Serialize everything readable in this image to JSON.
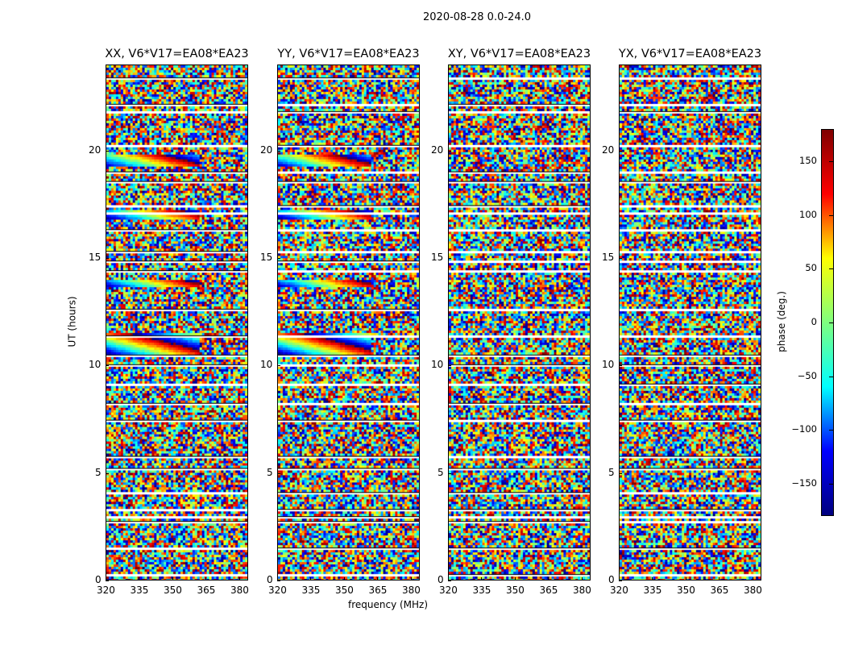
{
  "chart_data": {
    "type": "heatmap",
    "suptitle": "2020-08-28 0.0-24.0",
    "xlabel": "frequency (MHz)",
    "ylabel": "UT (hours)",
    "xlim": [
      320,
      384
    ],
    "ylim": [
      0,
      24
    ],
    "xticks": [
      320,
      335,
      350,
      365,
      380
    ],
    "yticks": [
      0,
      5,
      10,
      15,
      20
    ],
    "panels": [
      {
        "title": "XX, V6*V17=EA08*EA23",
        "coherent": true
      },
      {
        "title": "YY, V6*V17=EA08*EA23",
        "coherent": true
      },
      {
        "title": "XY, V6*V17=EA08*EA23",
        "coherent": false
      },
      {
        "title": "YX, V6*V17=EA08*EA23",
        "coherent": false
      }
    ],
    "flagged_ut_hours": [
      0.3,
      1.5,
      2.7,
      3.0,
      3.3,
      4.1,
      5.2,
      5.8,
      7.5,
      8.3,
      9.1,
      10.0,
      10.5,
      11.4,
      12.6,
      14.4,
      14.9,
      15.3,
      16.3,
      17.1,
      17.5,
      18.6,
      19.0,
      20.3,
      21.9,
      22.2,
      23.4
    ],
    "coherent_bands_ut_hours": [
      [
        10.6,
        11.6
      ],
      [
        13.7,
        14.0
      ],
      [
        16.9,
        17.3
      ],
      [
        19.3,
        19.9
      ]
    ],
    "colorbar": {
      "label": "phase (deg.)",
      "range": [
        -180,
        180
      ],
      "ticks": [
        -150,
        -100,
        -50,
        0,
        50,
        100,
        150
      ],
      "tick_labels": [
        "−150",
        "−100",
        "−50",
        "0",
        "50",
        "100",
        "150"
      ],
      "colormap": "jet"
    }
  }
}
